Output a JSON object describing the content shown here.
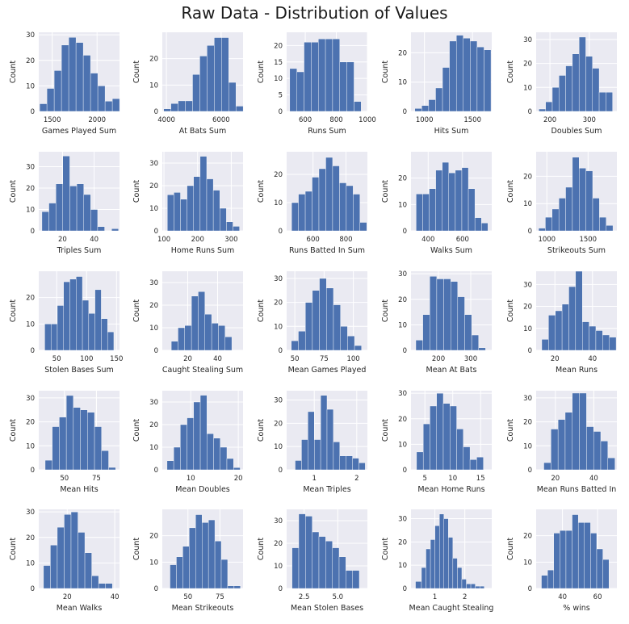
{
  "title": "Raw Data - Distribution of Values",
  "colors": {
    "bar": "#4C72B0",
    "panel_bg": "#EAEAF2",
    "grid": "#FFFFFF",
    "text": "#262626"
  },
  "chart_data": [
    {
      "type": "bar",
      "xlabel": "Games Played Sum",
      "ylabel": "Count",
      "xlim": [
        1350,
        2250
      ],
      "ylim": [
        0,
        31
      ],
      "xticks": [
        1500,
        2000
      ],
      "xtick_labels": [
        "1500",
        "2000"
      ],
      "yticks": [
        0,
        10,
        20,
        30
      ],
      "bin_edges": [
        1360,
        1441,
        1522,
        1603,
        1684,
        1765,
        1846,
        1927,
        2008,
        2089,
        2170,
        2251
      ],
      "values": [
        3,
        9,
        16,
        26,
        29,
        27,
        22,
        15,
        10,
        4,
        5
      ]
    },
    {
      "type": "bar",
      "xlabel": "At Bats Sum",
      "ylabel": "Count",
      "xlim": [
        3850,
        6800
      ],
      "ylim": [
        0,
        30
      ],
      "xticks": [
        4000,
        6000
      ],
      "xtick_labels": [
        "4000",
        "6000"
      ],
      "yticks": [
        0,
        10,
        20
      ],
      "bin_edges": [
        3900,
        4164,
        4428,
        4692,
        4956,
        5220,
        5484,
        5748,
        6012,
        6276,
        6540,
        6804
      ],
      "values": [
        1,
        3,
        4,
        4,
        14,
        21,
        25,
        28,
        28,
        11,
        2
      ]
    },
    {
      "type": "bar",
      "xlabel": "Runs Sum",
      "ylabel": "Count",
      "xlim": [
        480,
        1000
      ],
      "ylim": [
        0,
        24
      ],
      "xticks": [
        600,
        800,
        1000
      ],
      "xtick_labels": [
        "600",
        "800",
        "1000"
      ],
      "yticks": [
        0,
        5,
        10,
        15,
        20
      ],
      "bin_edges": [
        500,
        546,
        592,
        638,
        684,
        730,
        776,
        822,
        868,
        914,
        960
      ],
      "values": [
        13,
        12,
        21,
        21,
        22,
        22,
        22,
        15,
        15,
        3
      ]
    },
    {
      "type": "bar",
      "xlabel": "Hits Sum",
      "ylabel": "Count",
      "xlim": [
        860,
        1700
      ],
      "ylim": [
        0,
        27
      ],
      "xticks": [
        1000,
        1500
      ],
      "xtick_labels": [
        "1000",
        "1500"
      ],
      "yticks": [
        0,
        10,
        20
      ],
      "bin_edges": [
        900,
        972,
        1044,
        1116,
        1188,
        1260,
        1332,
        1404,
        1476,
        1548,
        1620,
        1692
      ],
      "values": [
        1,
        2,
        4,
        8,
        15,
        24,
        26,
        25,
        24,
        22,
        21
      ]
    },
    {
      "type": "bar",
      "xlabel": "Doubles Sum",
      "ylabel": "Count",
      "xlim": [
        165,
        370
      ],
      "ylim": [
        0,
        33
      ],
      "xticks": [
        200,
        300
      ],
      "xtick_labels": [
        "200",
        "300"
      ],
      "yticks": [
        0,
        10,
        20,
        30
      ],
      "bin_edges": [
        172,
        189,
        206,
        223,
        240,
        257,
        274,
        291,
        308,
        325,
        342,
        359
      ],
      "values": [
        1,
        4,
        10,
        15,
        19,
        24,
        31,
        23,
        18,
        8,
        8
      ]
    },
    {
      "type": "bar",
      "xlabel": "Triples Sum",
      "ylabel": "Count",
      "xlim": [
        5,
        56
      ],
      "ylim": [
        0,
        37
      ],
      "xticks": [
        20,
        40
      ],
      "xtick_labels": [
        "20",
        "40"
      ],
      "yticks": [
        0,
        10,
        20,
        30
      ],
      "bin_edges": [
        7,
        11.4,
        15.8,
        20.2,
        24.6,
        29,
        33.4,
        37.8,
        42.2,
        46.6,
        51,
        55.4
      ],
      "values": [
        9,
        13,
        22,
        35,
        21,
        22,
        17,
        10,
        2,
        0,
        1
      ]
    },
    {
      "type": "bar",
      "xlabel": "Home Runs Sum",
      "ylabel": "Count",
      "xlim": [
        95,
        335
      ],
      "ylim": [
        0,
        35
      ],
      "xticks": [
        100,
        200,
        300
      ],
      "xtick_labels": [
        "100",
        "200",
        "300"
      ],
      "yticks": [
        0,
        10,
        20,
        30
      ],
      "bin_edges": [
        110,
        129.5,
        149,
        168.5,
        188,
        207.5,
        227,
        246.5,
        266,
        285.5,
        305,
        324.5
      ],
      "values": [
        16,
        17,
        14,
        20,
        24,
        33,
        23,
        18,
        10,
        4,
        2
      ]
    },
    {
      "type": "bar",
      "xlabel": "Runs Batted In Sum",
      "ylabel": "Count",
      "xlim": [
        440,
        930
      ],
      "ylim": [
        0,
        28
      ],
      "xticks": [
        600,
        800
      ],
      "xtick_labels": [
        "600",
        "800"
      ],
      "yticks": [
        0,
        10,
        20
      ],
      "bin_edges": [
        470,
        511.5,
        553,
        594.5,
        636,
        677.5,
        719,
        760.5,
        802,
        843.5,
        885,
        926.5
      ],
      "values": [
        10,
        13,
        14,
        19,
        22,
        26,
        23,
        17,
        16,
        13,
        3
      ]
    },
    {
      "type": "bar",
      "xlabel": "Walks Sum",
      "ylabel": "Count",
      "xlim": [
        300,
        770
      ],
      "ylim": [
        0,
        30
      ],
      "xticks": [
        400,
        600
      ],
      "xtick_labels": [
        "400",
        "600"
      ],
      "yticks": [
        0,
        10,
        20
      ],
      "bin_edges": [
        330,
        368,
        406,
        444,
        482,
        520,
        558,
        596,
        634,
        672,
        710,
        748
      ],
      "values": [
        14,
        14,
        16,
        23,
        26,
        22,
        23,
        24,
        16,
        5,
        3
      ]
    },
    {
      "type": "bar",
      "xlabel": "Strikeouts Sum",
      "ylabel": "Count",
      "xlim": [
        870,
        1850
      ],
      "ylim": [
        0,
        29
      ],
      "xticks": [
        1000,
        1500
      ],
      "xtick_labels": [
        "1000",
        "1500"
      ],
      "yticks": [
        0,
        10,
        20
      ],
      "bin_edges": [
        900,
        982,
        1064,
        1146,
        1228,
        1310,
        1392,
        1474,
        1556,
        1638,
        1720,
        1802
      ],
      "values": [
        1,
        5,
        8,
        12,
        16,
        27,
        23,
        22,
        12,
        5,
        2
      ]
    },
    {
      "type": "bar",
      "xlabel": "Stolen Bases Sum",
      "ylabel": "Count",
      "xlim": [
        20,
        155
      ],
      "ylim": [
        0,
        30
      ],
      "xticks": [
        50,
        100,
        150
      ],
      "xtick_labels": [
        "50",
        "100",
        "150"
      ],
      "yticks": [
        0,
        10,
        20
      ],
      "bin_edges": [
        30,
        40.5,
        51,
        61.5,
        72,
        82.5,
        93,
        103.5,
        114,
        124.5,
        135,
        145.5
      ],
      "values": [
        10,
        10,
        17,
        26,
        27,
        28,
        19,
        14,
        23,
        12,
        7
      ]
    },
    {
      "type": "bar",
      "xlabel": "Caught Stealing Sum",
      "ylabel": "Count",
      "xlim": [
        3,
        57
      ],
      "ylim": [
        0,
        35
      ],
      "xticks": [
        20,
        40
      ],
      "xtick_labels": [
        "20",
        "40"
      ],
      "yticks": [
        0,
        10,
        20,
        30
      ],
      "bin_edges": [
        9,
        13.5,
        18,
        22.5,
        27,
        31.5,
        36,
        40.5,
        45,
        49.5,
        54
      ],
      "values": [
        4,
        10,
        11,
        24,
        26,
        16,
        12,
        11,
        6,
        0,
        2
      ]
    },
    {
      "type": "bar",
      "xlabel": "Mean Games Played",
      "ylabel": "Count",
      "xlim": [
        43,
        112
      ],
      "ylim": [
        0,
        33
      ],
      "xticks": [
        50,
        75,
        100
      ],
      "xtick_labels": [
        "50",
        "75",
        "100"
      ],
      "yticks": [
        0,
        10,
        20,
        30
      ],
      "bin_edges": [
        47,
        53,
        59,
        65,
        71,
        77,
        83,
        89,
        95,
        101,
        107
      ],
      "values": [
        4,
        8,
        20,
        25,
        30,
        26,
        19,
        10,
        6,
        2
      ]
    },
    {
      "type": "bar",
      "xlabel": "Mean At Bats",
      "ylabel": "Count",
      "xlim": [
        115,
        365
      ],
      "ylim": [
        0,
        31
      ],
      "xticks": [
        200,
        300
      ],
      "xtick_labels": [
        "200",
        "300"
      ],
      "yticks": [
        0,
        10,
        20,
        30
      ],
      "bin_edges": [
        130,
        151.6,
        173.2,
        194.8,
        216.4,
        238,
        259.6,
        281.2,
        302.8,
        324.4,
        346
      ],
      "values": [
        4,
        14,
        29,
        28,
        28,
        27,
        21,
        14,
        6,
        1
      ]
    },
    {
      "type": "bar",
      "xlabel": "Mean Runs",
      "ylabel": "Count",
      "xlim": [
        10,
        53
      ],
      "ylim": [
        0,
        36
      ],
      "xticks": [
        20,
        40
      ],
      "xtick_labels": [
        "20",
        "40"
      ],
      "yticks": [
        0,
        10,
        20,
        30
      ],
      "bin_edges": [
        13,
        16.6,
        20.2,
        23.8,
        27.4,
        31,
        34.6,
        38.2,
        41.8,
        45.4,
        49,
        52.6
      ],
      "values": [
        5,
        16,
        18,
        21,
        29,
        36,
        13,
        11,
        9,
        7,
        6
      ]
    },
    {
      "type": "bar",
      "xlabel": "Mean Hits",
      "ylabel": "Count",
      "xlim": [
        30,
        93
      ],
      "ylim": [
        0,
        33
      ],
      "xticks": [
        50,
        75
      ],
      "xtick_labels": [
        "50",
        "75"
      ],
      "yticks": [
        0,
        10,
        20,
        30
      ],
      "bin_edges": [
        35,
        40.5,
        46,
        51.5,
        57,
        62.5,
        68,
        73.5,
        79,
        84.5,
        90
      ],
      "values": [
        4,
        18,
        22,
        31,
        26,
        25,
        24,
        18,
        8,
        1
      ]
    },
    {
      "type": "bar",
      "xlabel": "Mean Doubles",
      "ylabel": "Count",
      "xlim": [
        4,
        21
      ],
      "ylim": [
        0,
        35
      ],
      "xticks": [
        10,
        20
      ],
      "xtick_labels": [
        "10",
        "20"
      ],
      "yticks": [
        0,
        10,
        20,
        30
      ],
      "bin_edges": [
        5,
        6.4,
        7.8,
        9.2,
        10.6,
        12,
        13.4,
        14.8,
        16.2,
        17.6,
        19,
        20.4
      ],
      "values": [
        4,
        10,
        20,
        23,
        30,
        33,
        16,
        14,
        10,
        5,
        1
      ]
    },
    {
      "type": "bar",
      "xlabel": "Mean Triples",
      "ylabel": "Count",
      "xlim": [
        0.35,
        2.25
      ],
      "ylim": [
        0,
        34
      ],
      "xticks": [
        1,
        2
      ],
      "xtick_labels": [
        "1",
        "2"
      ],
      "yticks": [
        0,
        10,
        20,
        30
      ],
      "bin_edges": [
        0.55,
        0.7,
        0.85,
        1.0,
        1.15,
        1.3,
        1.45,
        1.6,
        1.75,
        1.9,
        2.05,
        2.2
      ],
      "values": [
        4,
        13,
        25,
        13,
        32,
        26,
        12,
        6,
        6,
        5,
        3
      ]
    },
    {
      "type": "bar",
      "xlabel": "Mean Home Runs",
      "ylabel": "Count",
      "xlim": [
        2.5,
        17
      ],
      "ylim": [
        0,
        31
      ],
      "xticks": [
        5,
        10,
        15
      ],
      "xtick_labels": [
        "5",
        "10",
        "15"
      ],
      "yticks": [
        0,
        10,
        20,
        30
      ],
      "bin_edges": [
        3.5,
        4.7,
        5.9,
        7.1,
        8.3,
        9.5,
        10.7,
        11.9,
        13.1,
        14.3,
        15.5
      ],
      "values": [
        7,
        18,
        25,
        30,
        26,
        25,
        16,
        9,
        4,
        5
      ]
    },
    {
      "type": "bar",
      "xlabel": "Mean Runs Batted In",
      "ylabel": "Count",
      "xlim": [
        10,
        52
      ],
      "ylim": [
        0,
        33
      ],
      "xticks": [
        20,
        40
      ],
      "xtick_labels": [
        "20",
        "40"
      ],
      "yticks": [
        0,
        10,
        20,
        30
      ],
      "bin_edges": [
        14,
        17.7,
        21.4,
        25.1,
        28.8,
        32.5,
        36.2,
        39.9,
        43.6,
        47.3,
        51
      ],
      "values": [
        3,
        17,
        21,
        24,
        32,
        32,
        18,
        16,
        12,
        5
      ]
    },
    {
      "type": "bar",
      "xlabel": "Mean Walks",
      "ylabel": "Count",
      "xlim": [
        8,
        42
      ],
      "ylim": [
        0,
        31
      ],
      "xticks": [
        20,
        40
      ],
      "xtick_labels": [
        "20",
        "40"
      ],
      "yticks": [
        0,
        10,
        20,
        30
      ],
      "bin_edges": [
        10,
        12.9,
        15.8,
        18.7,
        21.6,
        24.5,
        27.4,
        30.3,
        33.2,
        36.1,
        39
      ],
      "values": [
        9,
        17,
        24,
        29,
        30,
        22,
        14,
        5,
        2,
        2
      ]
    },
    {
      "type": "bar",
      "xlabel": "Mean Strikeouts",
      "ylabel": "Count",
      "xlim": [
        30,
        93
      ],
      "ylim": [
        0,
        30
      ],
      "xticks": [
        50,
        75
      ],
      "xtick_labels": [
        "50",
        "75"
      ],
      "yticks": [
        0,
        10,
        20
      ],
      "bin_edges": [
        36,
        41,
        46,
        51,
        56,
        61,
        66,
        71,
        76,
        81,
        86,
        91
      ],
      "values": [
        9,
        12,
        16,
        23,
        28,
        25,
        26,
        18,
        11,
        1,
        1
      ]
    },
    {
      "type": "bar",
      "xlabel": "Mean Stolen Bases",
      "ylabel": "Count",
      "xlim": [
        1.2,
        7.2
      ],
      "ylim": [
        0,
        35
      ],
      "xticks": [
        2.5,
        5.0
      ],
      "xtick_labels": [
        "2.5",
        "5.0"
      ],
      "yticks": [
        0,
        10,
        20,
        30
      ],
      "bin_edges": [
        1.6,
        2.1,
        2.6,
        3.1,
        3.6,
        4.1,
        4.6,
        5.1,
        5.6,
        6.1,
        6.6
      ],
      "values": [
        18,
        33,
        32,
        25,
        23,
        21,
        18,
        14,
        8,
        8
      ]
    },
    {
      "type": "bar",
      "xlabel": "Mean Caught Stealing",
      "ylabel": "Count",
      "xlim": [
        0.2,
        2.9
      ],
      "ylim": [
        0,
        34
      ],
      "xticks": [
        1,
        2
      ],
      "xtick_labels": [
        "1",
        "2"
      ],
      "yticks": [
        0,
        10,
        20,
        30
      ],
      "bin_edges": [
        0.35,
        0.55,
        0.7,
        0.85,
        1.0,
        1.15,
        1.3,
        1.45,
        1.6,
        1.75,
        1.9,
        2.05,
        2.2,
        2.35,
        2.5,
        2.65
      ],
      "values": [
        3,
        9,
        17,
        21,
        27,
        32,
        30,
        22,
        13,
        9,
        4,
        2,
        2,
        1,
        1
      ]
    },
    {
      "type": "bar",
      "xlabel": "% wins",
      "ylabel": "Count",
      "xlim": [
        25,
        71
      ],
      "ylim": [
        0,
        30
      ],
      "xticks": [
        40,
        60
      ],
      "xtick_labels": [
        "40",
        "60"
      ],
      "yticks": [
        0,
        10,
        20
      ],
      "bin_edges": [
        28,
        31.5,
        35,
        38.5,
        42,
        45.5,
        49,
        52.5,
        56,
        59.5,
        63,
        66.5
      ],
      "values": [
        5,
        7,
        21,
        22,
        22,
        28,
        25,
        25,
        21,
        15,
        11
      ]
    }
  ]
}
